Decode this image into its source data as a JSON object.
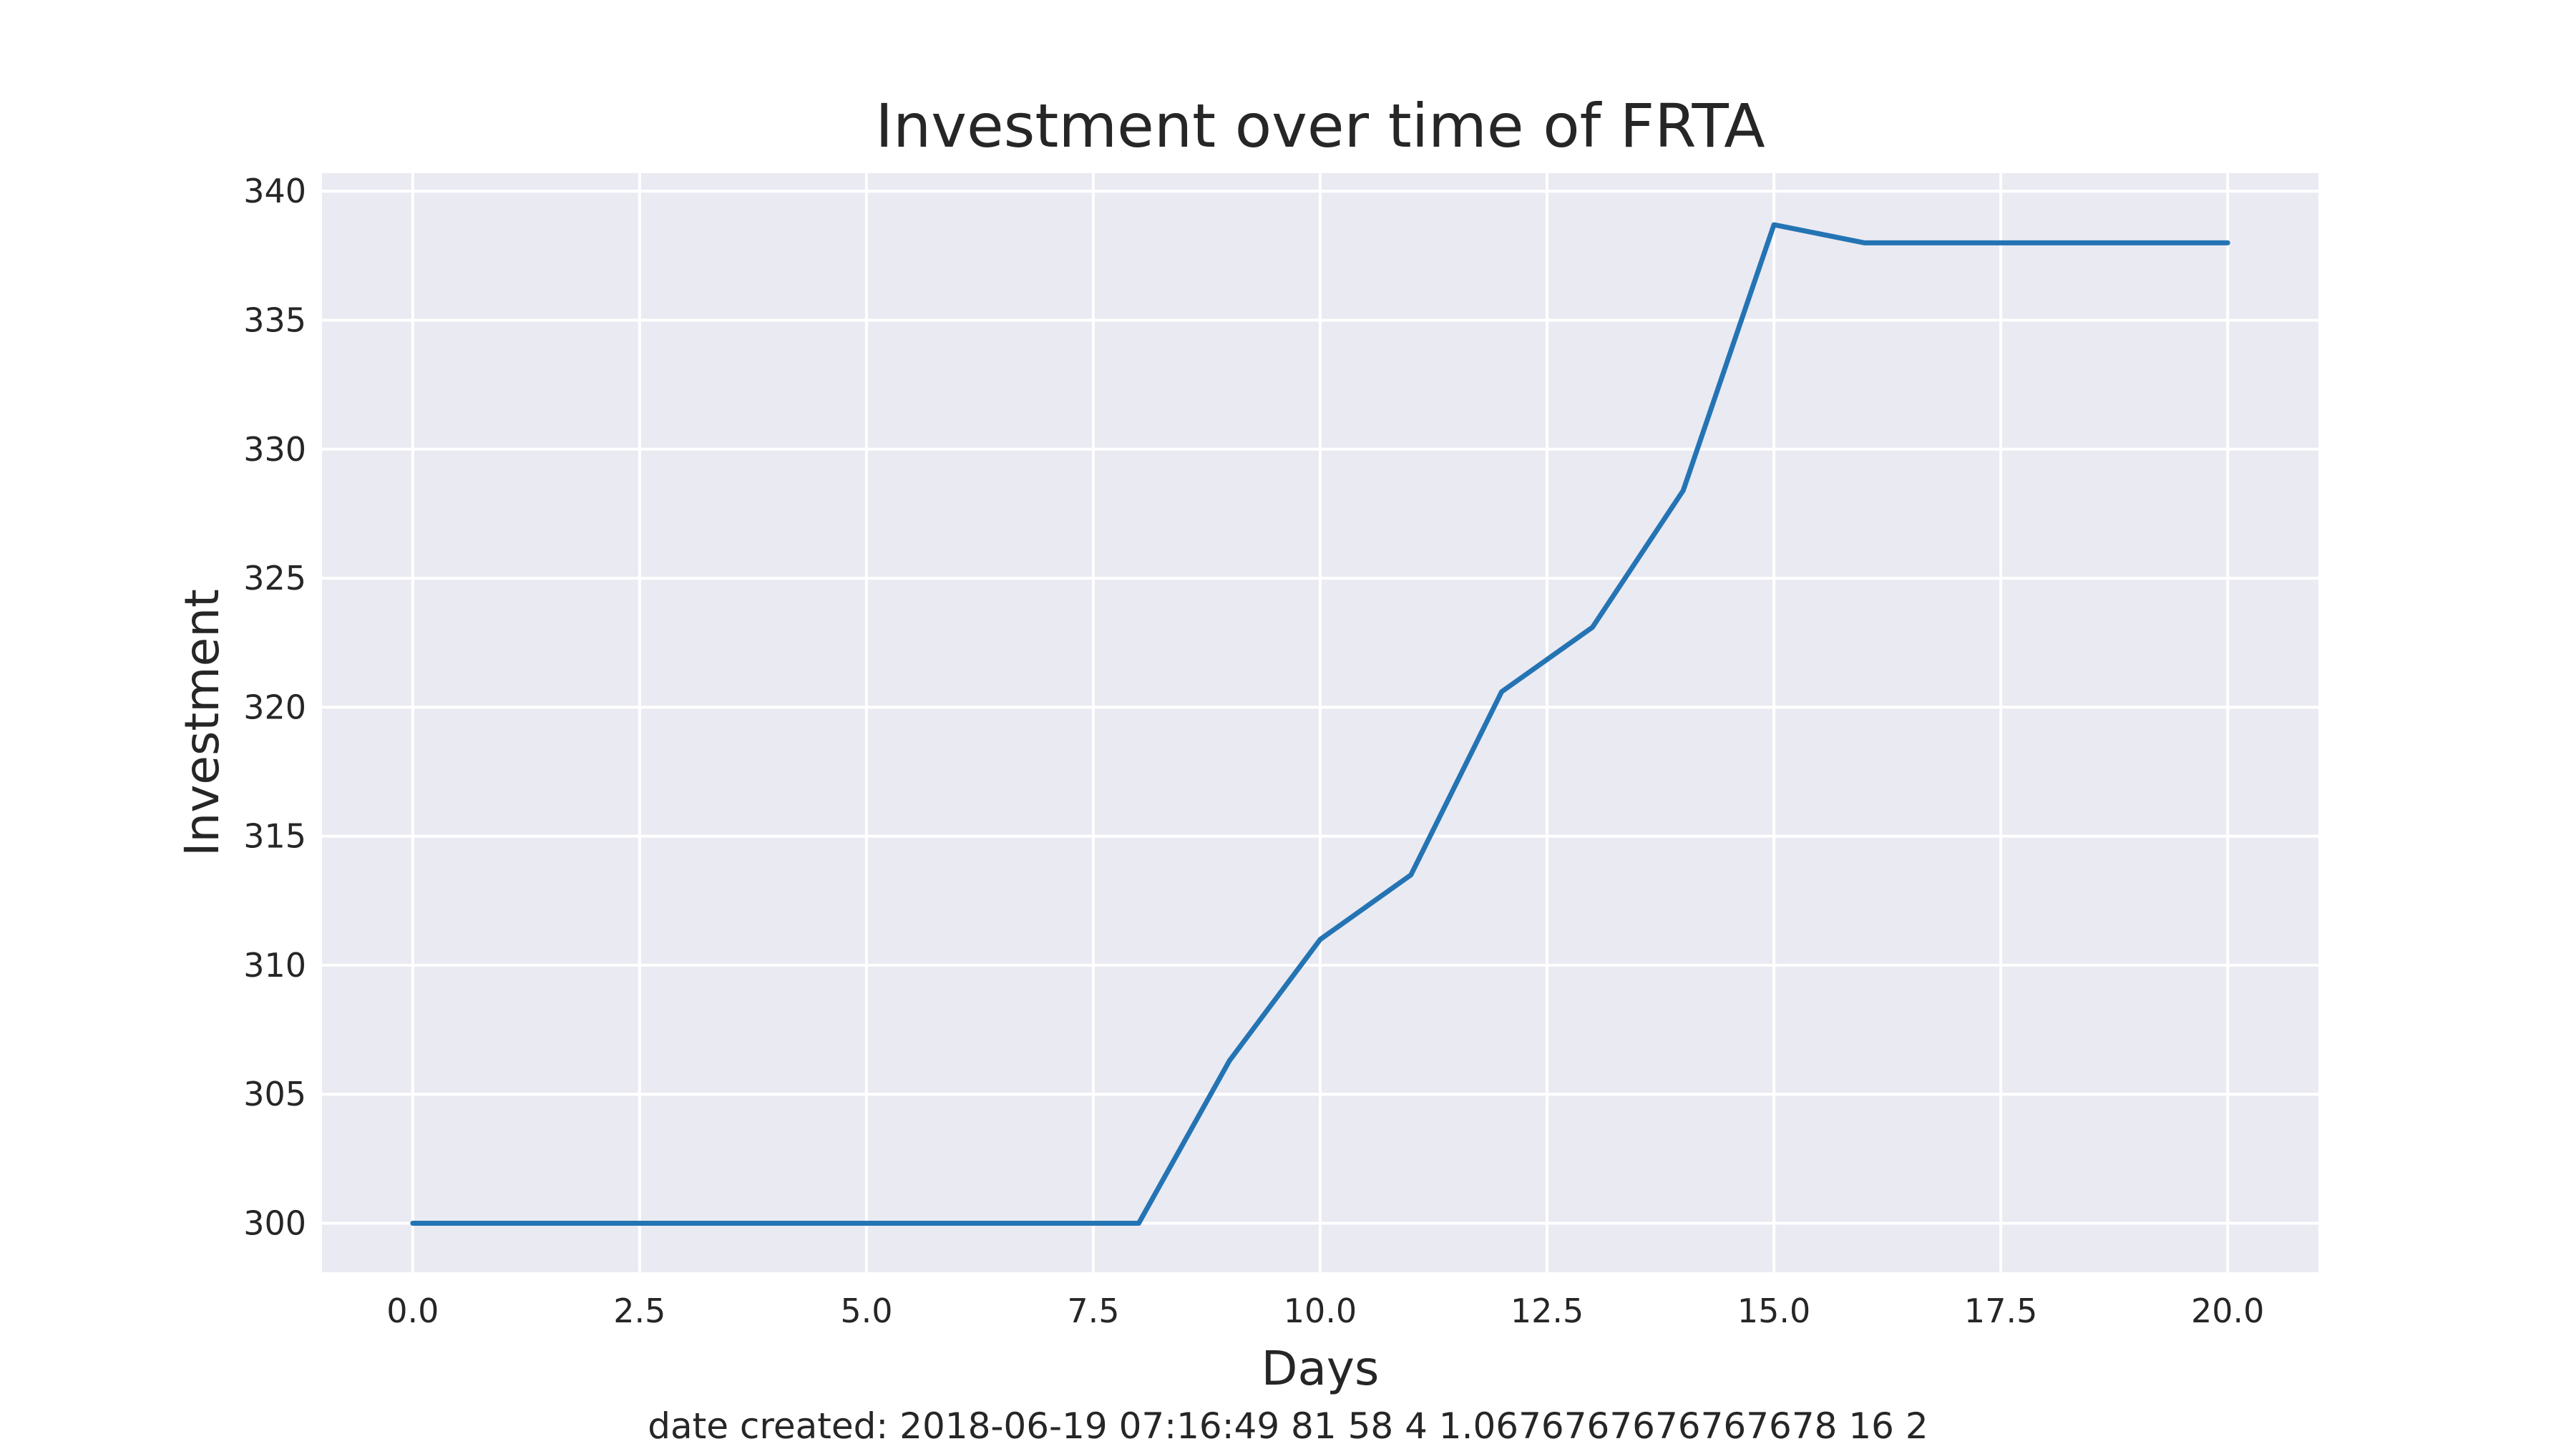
{
  "chart_data": {
    "type": "line",
    "title": "Investment over time of FRTA",
    "xlabel": "Days",
    "ylabel": "Investment",
    "footer": "date created: 2018-06-19 07:16:49 81 58 4 1.0676767676767678 16 2",
    "xlim": [
      -1.0,
      21.0
    ],
    "ylim": [
      298.1,
      340.7
    ],
    "xticks": [
      0.0,
      2.5,
      5.0,
      7.5,
      10.0,
      12.5,
      15.0,
      17.5,
      20.0
    ],
    "xtick_labels": [
      "0.0",
      "2.5",
      "5.0",
      "7.5",
      "10.0",
      "12.5",
      "15.0",
      "17.5",
      "20.0"
    ],
    "yticks": [
      300,
      305,
      310,
      315,
      320,
      325,
      330,
      335,
      340
    ],
    "ytick_labels": [
      "300",
      "305",
      "310",
      "315",
      "320",
      "325",
      "330",
      "335",
      "340"
    ],
    "grid": true,
    "series": [
      {
        "x": [
          0,
          1,
          2,
          3,
          4,
          5,
          6,
          7,
          8,
          9,
          10,
          11,
          12,
          13,
          14,
          15,
          16,
          17,
          18,
          19,
          20
        ],
        "values": [
          300.0,
          300.0,
          300.0,
          300.0,
          300.0,
          300.0,
          300.0,
          300.0,
          300.0,
          306.3,
          311.0,
          313.5,
          320.6,
          323.1,
          328.4,
          338.7,
          338.0,
          338.0,
          338.0,
          338.0,
          338.0
        ]
      }
    ],
    "colors": {
      "plot_background": "#eaeaf2",
      "grid": "#ffffff",
      "line": "#2474b4",
      "text": "#262626"
    }
  }
}
